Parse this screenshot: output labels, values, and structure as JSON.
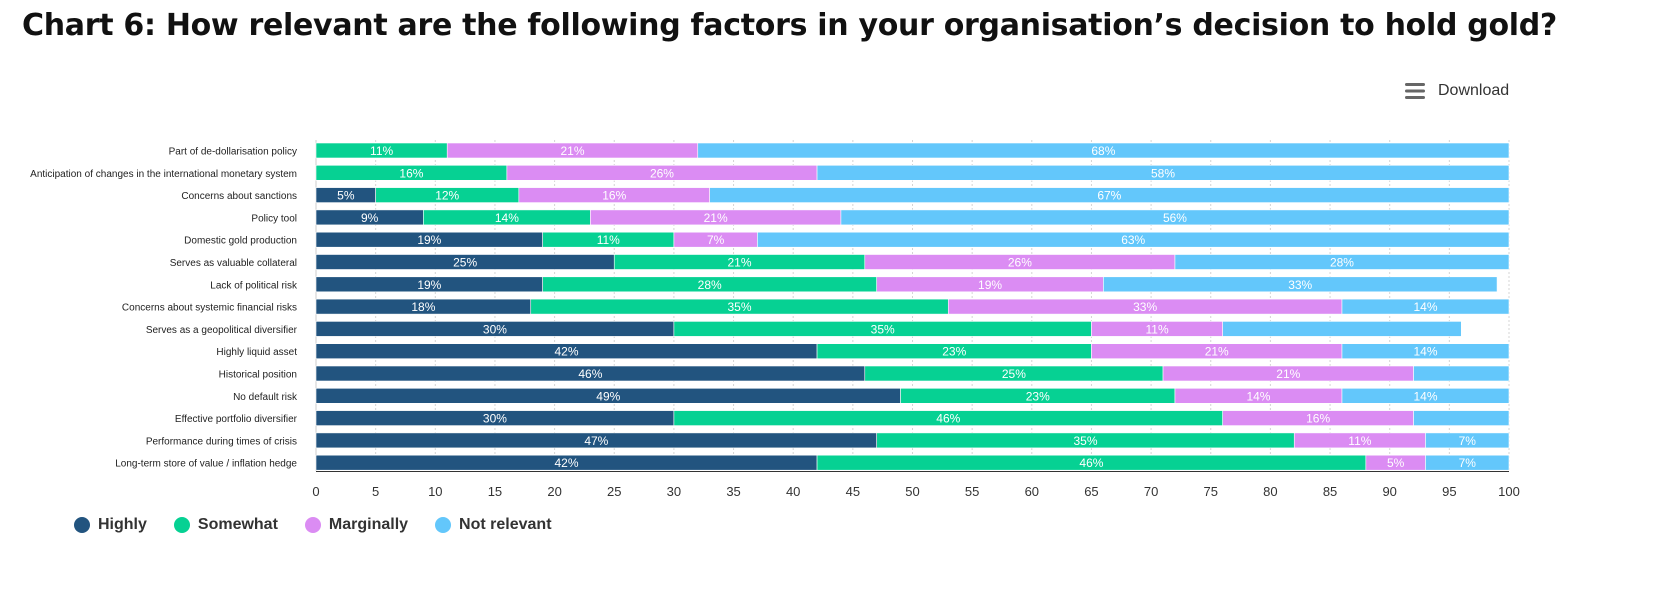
{
  "title": "Chart 6: How relevant are the following factors in your organisation’s decision to hold gold?",
  "toolbar": {
    "download_label": "Download",
    "icon": "hamburger-menu-icon"
  },
  "chart_data": {
    "type": "bar",
    "orientation": "horizontal",
    "stacked": true,
    "xlim": [
      0,
      100
    ],
    "xticks": [
      0,
      5,
      10,
      15,
      20,
      25,
      30,
      35,
      40,
      45,
      50,
      55,
      60,
      65,
      70,
      75,
      80,
      85,
      90,
      95,
      100
    ],
    "grid": true,
    "legend_position": "bottom-left",
    "categories": [
      "Part of de-dollarisation policy",
      "Anticipation of changes in the international monetary system",
      "Concerns about sanctions",
      "Policy tool",
      "Domestic gold production",
      "Serves as valuable collateral",
      "Lack of political risk",
      "Concerns about systemic financial risks",
      "Serves as a geopolitical diversifier",
      "Highly liquid asset",
      "Historical position",
      "No default risk",
      "Effective portfolio diversifier",
      "Performance during times of crisis",
      "Long-term store of value / inflation hedge"
    ],
    "series": [
      {
        "name": "Highly",
        "color": "#22547f",
        "values": [
          0,
          0,
          5,
          9,
          19,
          25,
          19,
          18,
          30,
          42,
          46,
          49,
          30,
          47,
          42
        ]
      },
      {
        "name": "Somewhat",
        "color": "#06d193",
        "values": [
          11,
          16,
          12,
          14,
          11,
          21,
          28,
          35,
          35,
          23,
          25,
          23,
          46,
          35,
          46
        ]
      },
      {
        "name": "Marginally",
        "color": "#db8cf3",
        "values": [
          21,
          26,
          16,
          21,
          7,
          26,
          19,
          33,
          11,
          21,
          21,
          14,
          16,
          11,
          5
        ]
      },
      {
        "name": "Not relevant",
        "color": "#63c7fb",
        "values": [
          68,
          58,
          67,
          56,
          63,
          28,
          33,
          14,
          20,
          14,
          8,
          14,
          8,
          7,
          7
        ]
      }
    ],
    "data_labels": [
      [
        "",
        "11%",
        "21%",
        "68%"
      ],
      [
        "",
        "16%",
        "26%",
        "58%"
      ],
      [
        "5%",
        "12%",
        "16%",
        "67%"
      ],
      [
        "9%",
        "14%",
        "21%",
        "56%"
      ],
      [
        "19%",
        "11%",
        "7%",
        "63%"
      ],
      [
        "25%",
        "21%",
        "26%",
        "28%"
      ],
      [
        "19%",
        "28%",
        "19%",
        "33%"
      ],
      [
        "18%",
        "35%",
        "33%",
        "14%"
      ],
      [
        "30%",
        "35%",
        "11%",
        ""
      ],
      [
        "42%",
        "23%",
        "21%",
        "14%"
      ],
      [
        "46%",
        "25%",
        "21%",
        ""
      ],
      [
        "49%",
        "23%",
        "14%",
        "14%"
      ],
      [
        "30%",
        "46%",
        "16%",
        ""
      ],
      [
        "47%",
        "35%",
        "11%",
        "7%"
      ],
      [
        "42%",
        "46%",
        "5%",
        "7%"
      ]
    ]
  }
}
